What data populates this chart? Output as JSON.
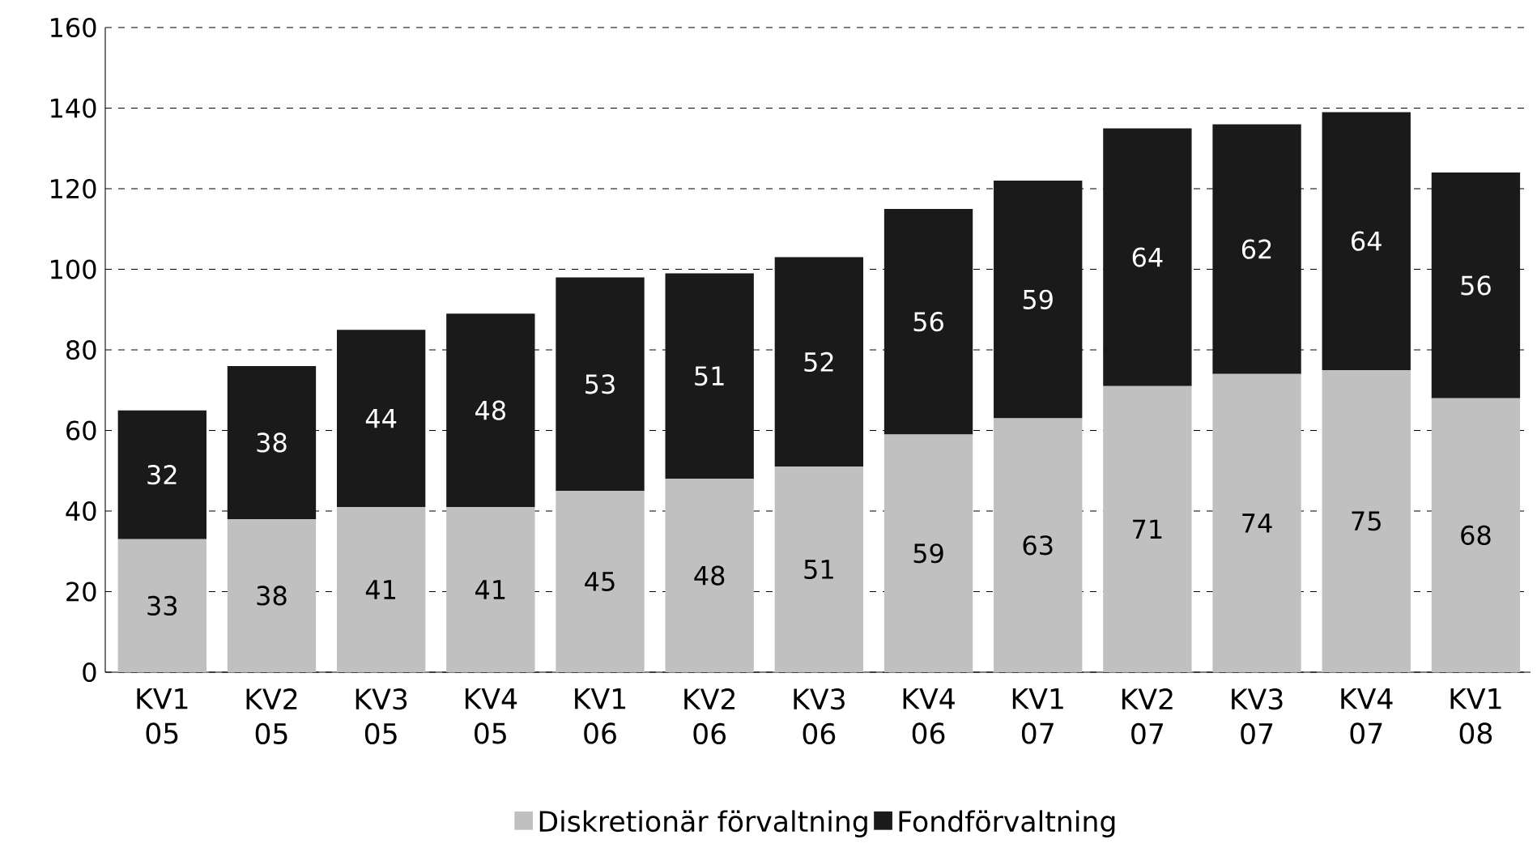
{
  "chart_data": {
    "type": "bar",
    "stacked": true,
    "categories": [
      "KV1 05",
      "KV2 05",
      "KV3 05",
      "KV4 05",
      "KV1 06",
      "KV2 06",
      "KV3 06",
      "KV4 06",
      "KV1 07",
      "KV2 07",
      "KV3 07",
      "KV4 07",
      "KV1 08"
    ],
    "series": [
      {
        "name": "Diskretionär förvaltning",
        "color": "#c0c0c0",
        "values": [
          33,
          38,
          41,
          41,
          45,
          48,
          51,
          59,
          63,
          71,
          74,
          75,
          68
        ]
      },
      {
        "name": "Fondförvaltning",
        "color": "#1a1a1a",
        "values": [
          32,
          38,
          44,
          48,
          53,
          51,
          52,
          56,
          59,
          64,
          62,
          64,
          56
        ]
      }
    ],
    "ylim": [
      0,
      160
    ],
    "yticks": [
      0,
      20,
      40,
      60,
      80,
      100,
      120,
      140,
      160
    ],
    "grid": "y",
    "legend": "bottom",
    "data_labels": true
  }
}
